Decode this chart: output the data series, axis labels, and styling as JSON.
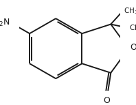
{
  "background": "#ffffff",
  "line_color": "#1a1a1a",
  "line_width": 1.4,
  "figsize": [
    1.98,
    1.54
  ],
  "dpi": 100,
  "font_size_label": 9,
  "font_size_methyl": 7.5
}
